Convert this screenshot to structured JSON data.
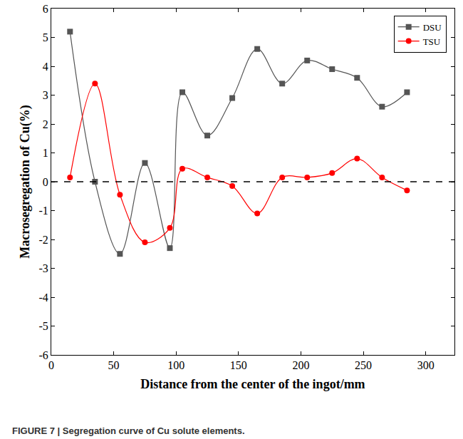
{
  "chart_data": {
    "type": "line",
    "title": "FIGURE 7 | Segregation curve of Cu solute elements.",
    "x_label": "Distance from the center of the ingot/mm",
    "y_label": "Macrosegregation of Cu(%)",
    "x": [
      15,
      35,
      55,
      75,
      95,
      105,
      125,
      145,
      165,
      185,
      205,
      225,
      245,
      265,
      285
    ],
    "series": [
      {
        "name": "DSU",
        "color": "#555555",
        "marker": "square",
        "line_style": "spline",
        "values": [
          5.2,
          0.0,
          -2.5,
          0.65,
          -2.3,
          3.1,
          1.6,
          2.9,
          4.6,
          3.4,
          4.2,
          3.9,
          3.6,
          2.6,
          3.1
        ]
      },
      {
        "name": "TSU",
        "color": "#ff0000",
        "marker": "circle",
        "line_style": "spline",
        "values": [
          0.15,
          3.4,
          -0.45,
          -2.1,
          -1.6,
          0.45,
          0.15,
          -0.15,
          -1.1,
          0.15,
          0.15,
          0.3,
          0.8,
          0.15,
          -0.3
        ]
      }
    ],
    "xlim": [
      0,
      323
    ],
    "xticks": [
      0,
      50,
      100,
      150,
      200,
      250,
      300
    ],
    "ylim": [
      -6,
      6
    ],
    "yticks": [
      -6,
      -5,
      -4,
      -3,
      -2,
      -1,
      0,
      1,
      2,
      3,
      4,
      5,
      6
    ],
    "grid": false,
    "legend": "top-right"
  }
}
